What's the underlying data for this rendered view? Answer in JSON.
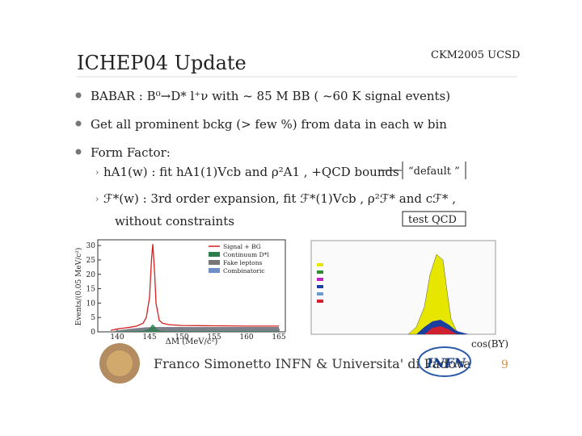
{
  "header": {
    "title": "ICHEP04 Update",
    "conference": "CKM2005 UCSD"
  },
  "bullets": [
    {
      "text": "BABAR : B⁰→D* l⁺ν  with ~ 85 M BB ( ~60 K signal events)"
    },
    {
      "text": "Get all prominent bckg (> few %) from data in each w bin"
    },
    {
      "text": "Form Factor:",
      "sub": [
        "hA1(w) : fit hA1(1)Vcb and ρ²A1 , +QCD bounds",
        "ℱ*(w) : 3rd order expansion, fit ℱ*(1)Vcb , ρ²ℱ* and cℱ* ,",
        "without constraints"
      ]
    }
  ],
  "boxes": [
    "“default ”",
    "test QCD"
  ],
  "figures": {
    "left": {
      "type": "line",
      "xlabel": "ΔM (MeV/c²)",
      "ylabel": "Events/(0.05 MeV/c²)",
      "xlim": [
        137,
        166
      ],
      "ylim": [
        0,
        32
      ],
      "xticks": [
        140,
        145,
        150,
        155,
        160,
        165
      ],
      "yticks": [
        0,
        5,
        10,
        15,
        20,
        25,
        30
      ],
      "x": [
        139,
        140,
        141,
        142,
        143,
        144,
        144.5,
        145,
        145.3,
        145.5,
        145.8,
        146,
        146.5,
        147,
        148,
        150,
        155,
        160,
        165
      ],
      "series": [
        {
          "name": "Signal + BG",
          "color": "#d62020",
          "values": [
            0.5,
            1,
            1.3,
            1.6,
            2,
            3,
            5,
            12,
            25,
            30.5,
            20,
            10,
            4,
            3,
            2.5,
            2.2,
            2.1,
            2,
            2
          ]
        },
        {
          "name": "Continuum D*l",
          "color": "#2e7d4f",
          "values": [
            0,
            0.1,
            0.2,
            0.2,
            0.3,
            0.4,
            0.6,
            1.2,
            2.2,
            2.6,
            2,
            1.2,
            0.5,
            0.3,
            0.2,
            0.2,
            0.2,
            0.2,
            0.2
          ]
        },
        {
          "name": "Fake leptons",
          "color": "#777777",
          "values": [
            0,
            0.5,
            0.8,
            1.1,
            1.3,
            1.5,
            1.6,
            1.6,
            1.7,
            1.7,
            1.7,
            1.7,
            1.7,
            1.7,
            1.7,
            1.7,
            1.7,
            1.7,
            1.7
          ]
        },
        {
          "name": "Combinatoric",
          "color": "#6f8fc8",
          "values": [
            0,
            0.4,
            0.7,
            1,
            1.2,
            1.4,
            1.5,
            1.5,
            1.6,
            1.6,
            1.6,
            1.6,
            1.6,
            1.6,
            1.6,
            1.6,
            1.6,
            1.6,
            1.6
          ]
        }
      ]
    },
    "right": {
      "xlabel": "cos(BY)"
    }
  },
  "footer": {
    "author": "Franco Simonetto INFN & Universita' di Padova",
    "logo": "INFN",
    "page": "9"
  }
}
